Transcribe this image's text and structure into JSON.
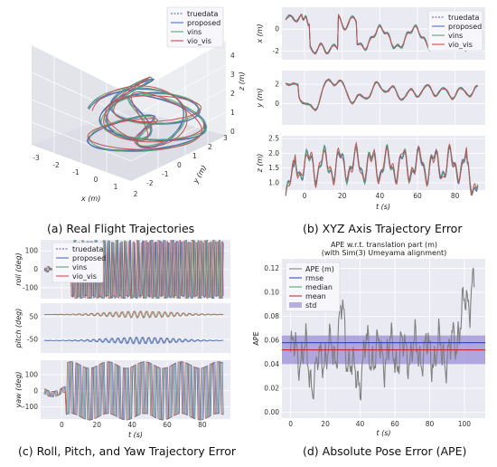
{
  "captions": {
    "a": "(a) Real Flight Trajectories",
    "b": "(b) XYZ Axis Trajectory Error",
    "c": "(c) Roll, Pitch, and Yaw Trajectory Error",
    "d": "(d) Absolute Pose Error (APE)"
  },
  "colors": {
    "truedata": "#4a5fa8",
    "proposed": "#4c72b0",
    "vins": "#55a868",
    "vio_vis": "#c44e52",
    "ape": "#808080",
    "rmse": "#3b4cc0",
    "median": "#55a868",
    "mean": "#c03030",
    "std": "#9b8fd6"
  },
  "chart_data": [
    {
      "id": "a",
      "type": "line",
      "legend": [
        "truedata",
        "proposed",
        "vins",
        "vio_vis"
      ],
      "xlabel": "x (m)",
      "ylabel": "y (m)",
      "zlabel": "z (m)",
      "xticks": [
        "-3",
        "-2",
        "-1",
        "0",
        "1",
        "2"
      ],
      "yticks": [
        "-2",
        "-1",
        "0",
        "1",
        "2",
        "3"
      ],
      "zticks": [
        "0",
        "1",
        "2",
        "3",
        "4"
      ]
    },
    {
      "id": "b",
      "type": "line",
      "legend": [
        "truedata",
        "proposed",
        "vins",
        "vio_vis"
      ],
      "xlabel": "t (s)",
      "xticks": [
        "0",
        "20",
        "40",
        "60",
        "80"
      ],
      "xlim": [
        -12,
        96
      ],
      "panels": [
        {
          "ylabel": "x (m)",
          "ylim": [
            -2.8,
            2.0
          ],
          "yticks": [
            "0",
            "-2"
          ],
          "yticks_v": [
            0,
            -2
          ]
        },
        {
          "ylabel": "y (m)",
          "ylim": [
            -2.2,
            3.4
          ],
          "yticks": [
            "2",
            "0"
          ],
          "yticks_v": [
            2,
            0
          ]
        },
        {
          "ylabel": "z (m)",
          "ylim": [
            0.75,
            2.6
          ],
          "yticks": [
            "2.5",
            "2.0",
            "1.5",
            "1.0"
          ],
          "yticks_v": [
            2.5,
            2.0,
            1.5,
            1.0
          ]
        }
      ]
    },
    {
      "id": "c",
      "type": "line",
      "legend": [
        "truedata",
        "proposed",
        "vins",
        "vio_vis"
      ],
      "xlabel": "t (s)",
      "xticks": [
        "0",
        "20",
        "40",
        "60",
        "80"
      ],
      "xlim": [
        -12,
        96
      ],
      "panels": [
        {
          "ylabel": "roll (deg)",
          "ylim": [
            -160,
            160
          ],
          "yticks": [
            "100",
            "0",
            "-100"
          ],
          "yticks_v": [
            100,
            0,
            -100
          ]
        },
        {
          "ylabel": "pitch (deg)",
          "ylim": [
            -110,
            110
          ],
          "yticks": [
            "50",
            "-50"
          ],
          "yticks_v": [
            50,
            -50
          ]
        },
        {
          "ylabel": "yaw (deg)",
          "ylim": [
            -175,
            190
          ],
          "yticks": [
            "100",
            "0",
            "-100"
          ],
          "yticks_v": [
            100,
            0,
            -100
          ]
        }
      ]
    },
    {
      "id": "d",
      "type": "line",
      "title": "APE w.r.t. translation part (m)",
      "subtitle": "(with Sim(3) Umeyama alignment)",
      "legend": [
        "APE (m)",
        "rmse",
        "median",
        "mean",
        "std"
      ],
      "xlabel": "t (s)",
      "ylabel": "APE",
      "xticks": [
        "0",
        "20",
        "40",
        "60",
        "80",
        "100"
      ],
      "xlim": [
        -5,
        112
      ],
      "yticks": [
        "0.00",
        "0.02",
        "0.04",
        "0.06",
        "0.08",
        "0.10",
        "0.12"
      ],
      "ylim": [
        -0.005,
        0.128
      ],
      "rmse": 0.058,
      "median": 0.052,
      "mean": 0.052,
      "std_range": [
        0.04,
        0.064
      ]
    }
  ]
}
